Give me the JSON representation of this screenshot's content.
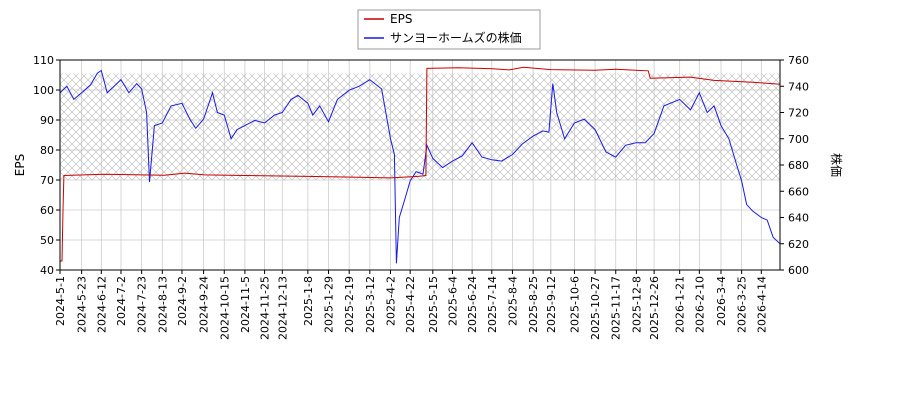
{
  "chart_data": {
    "type": "line",
    "x_ticks": [
      "2024-5-1",
      "2024-5-23",
      "2024-6-12",
      "2024-7-2",
      "2024-7-23",
      "2024-8-13",
      "2024-9-2",
      "2024-9-24",
      "2024-10-15",
      "2024-11-5",
      "2024-11-25",
      "2024-12-13",
      "2025-1-8",
      "2025-1-29",
      "2025-2-19",
      "2025-3-12",
      "2025-4-2",
      "2025-4-22",
      "2025-5-15",
      "2025-6-4",
      "2025-6-24",
      "2025-7-14",
      "2025-8-4",
      "2025-8-25",
      "2025-9-12",
      "2025-10-6",
      "2025-10-27",
      "2025-11-17",
      "2025-12-8",
      "2025-12-26",
      "2026-1-21",
      "2026-2-10",
      "2026-3-4",
      "2026-3-25",
      "2026-4-14"
    ],
    "x_range": [
      "2024-5-1",
      "2026-5-3"
    ],
    "y_left": {
      "label": "EPS",
      "range": [
        40,
        110
      ],
      "ticks": [
        "40",
        "50",
        "60",
        "70",
        "80",
        "90",
        "100",
        "110"
      ]
    },
    "y_right": {
      "label": "株価",
      "range": [
        600,
        760
      ],
      "ticks": [
        "600",
        "620",
        "640",
        "660",
        "680",
        "700",
        "720",
        "740",
        "760"
      ]
    },
    "hatch_band_eps": [
      70,
      105.5
    ],
    "grid": true,
    "legend_position": "top-center",
    "series": [
      {
        "name": "EPS",
        "axis": "left",
        "color": "#cc0000",
        "points": [
          [
            "2024-5-1",
            43
          ],
          [
            "2024-5-3",
            43
          ],
          [
            "2024-5-4",
            60
          ],
          [
            "2024-5-5",
            71.5
          ],
          [
            "2024-6-15",
            71.9
          ],
          [
            "2024-8-15",
            71.6
          ],
          [
            "2024-9-5",
            72.3
          ],
          [
            "2024-9-25",
            71.7
          ],
          [
            "2024-11-5",
            71.5
          ],
          [
            "2025-1-8",
            71.2
          ],
          [
            "2025-3-1",
            70.9
          ],
          [
            "2025-4-2",
            70.7
          ],
          [
            "2025-4-30",
            71.2
          ],
          [
            "2025-5-8",
            71.5
          ],
          [
            "2025-5-9",
            107.2
          ],
          [
            "2025-6-10",
            107.4
          ],
          [
            "2025-7-15",
            107.1
          ],
          [
            "2025-8-1",
            106.7
          ],
          [
            "2025-8-15",
            107.6
          ],
          [
            "2025-9-12",
            106.8
          ],
          [
            "2025-10-27",
            106.6
          ],
          [
            "2025-11-17",
            106.9
          ],
          [
            "2025-12-20",
            106.4
          ],
          [
            "2025-12-22",
            103.9
          ],
          [
            "2026-2-1",
            104.3
          ],
          [
            "2026-2-25",
            103.2
          ],
          [
            "2026-4-5",
            102.6
          ],
          [
            "2026-5-3",
            101.9
          ]
        ]
      },
      {
        "name": "サンヨーホームズの株価",
        "axis": "right",
        "color": "#1a1ae6",
        "points": [
          [
            "2024-5-1",
            735
          ],
          [
            "2024-5-8",
            740
          ],
          [
            "2024-5-15",
            730
          ],
          [
            "2024-5-23",
            735
          ],
          [
            "2024-6-1",
            741
          ],
          [
            "2024-6-8",
            750
          ],
          [
            "2024-6-12",
            752
          ],
          [
            "2024-6-18",
            735
          ],
          [
            "2024-6-25",
            740
          ],
          [
            "2024-7-2",
            745
          ],
          [
            "2024-7-10",
            735
          ],
          [
            "2024-7-18",
            742
          ],
          [
            "2024-7-23",
            738
          ],
          [
            "2024-7-28",
            720
          ],
          [
            "2024-7-31",
            667
          ],
          [
            "2024-8-5",
            710
          ],
          [
            "2024-8-13",
            712
          ],
          [
            "2024-8-22",
            725
          ],
          [
            "2024-9-2",
            727
          ],
          [
            "2024-9-10",
            715
          ],
          [
            "2024-9-16",
            708
          ],
          [
            "2024-9-24",
            715
          ],
          [
            "2024-10-3",
            735
          ],
          [
            "2024-10-8",
            720
          ],
          [
            "2024-10-15",
            718
          ],
          [
            "2024-10-22",
            700
          ],
          [
            "2024-10-28",
            707
          ],
          [
            "2024-11-5",
            710
          ],
          [
            "2024-11-15",
            714
          ],
          [
            "2024-11-25",
            712
          ],
          [
            "2024-12-5",
            718
          ],
          [
            "2024-12-13",
            720
          ],
          [
            "2024-12-22",
            730
          ],
          [
            "2024-12-29",
            733
          ],
          [
            "2025-1-8",
            727
          ],
          [
            "2025-1-13",
            718
          ],
          [
            "2025-1-20",
            725
          ],
          [
            "2025-1-29",
            713
          ],
          [
            "2025-2-7",
            730
          ],
          [
            "2025-2-19",
            737
          ],
          [
            "2025-3-1",
            740
          ],
          [
            "2025-3-12",
            745
          ],
          [
            "2025-3-24",
            738
          ],
          [
            "2025-4-2",
            700
          ],
          [
            "2025-4-6",
            688
          ],
          [
            "2025-4-8",
            605
          ],
          [
            "2025-4-11",
            640
          ],
          [
            "2025-4-15",
            650
          ],
          [
            "2025-4-22",
            668
          ],
          [
            "2025-4-28",
            675
          ],
          [
            "2025-5-5",
            673
          ],
          [
            "2025-5-9",
            695
          ],
          [
            "2025-5-15",
            685
          ],
          [
            "2025-5-25",
            678
          ],
          [
            "2025-6-4",
            683
          ],
          [
            "2025-6-14",
            687
          ],
          [
            "2025-6-24",
            697
          ],
          [
            "2025-7-4",
            686
          ],
          [
            "2025-7-14",
            684
          ],
          [
            "2025-7-24",
            683
          ],
          [
            "2025-8-4",
            688
          ],
          [
            "2025-8-14",
            696
          ],
          [
            "2025-8-25",
            702
          ],
          [
            "2025-9-4",
            706
          ],
          [
            "2025-9-10",
            705
          ],
          [
            "2025-9-14",
            742
          ],
          [
            "2025-9-18",
            720
          ],
          [
            "2025-9-26",
            700
          ],
          [
            "2025-10-6",
            712
          ],
          [
            "2025-10-16",
            715
          ],
          [
            "2025-10-27",
            707
          ],
          [
            "2025-11-7",
            690
          ],
          [
            "2025-11-17",
            686
          ],
          [
            "2025-11-27",
            695
          ],
          [
            "2025-12-8",
            697
          ],
          [
            "2025-12-17",
            697
          ],
          [
            "2025-12-26",
            704
          ],
          [
            "2026-1-5",
            725
          ],
          [
            "2026-1-21",
            730
          ],
          [
            "2026-2-1",
            722
          ],
          [
            "2026-2-10",
            735
          ],
          [
            "2026-2-18",
            720
          ],
          [
            "2026-2-25",
            725
          ],
          [
            "2026-3-4",
            710
          ],
          [
            "2026-3-12",
            700
          ],
          [
            "2026-3-20",
            680
          ],
          [
            "2026-3-25",
            668
          ],
          [
            "2026-3-30",
            650
          ],
          [
            "2026-4-5",
            645
          ],
          [
            "2026-4-14",
            640
          ],
          [
            "2026-4-20",
            638
          ],
          [
            "2026-4-26",
            625
          ],
          [
            "2026-5-3",
            620
          ]
        ]
      }
    ]
  }
}
